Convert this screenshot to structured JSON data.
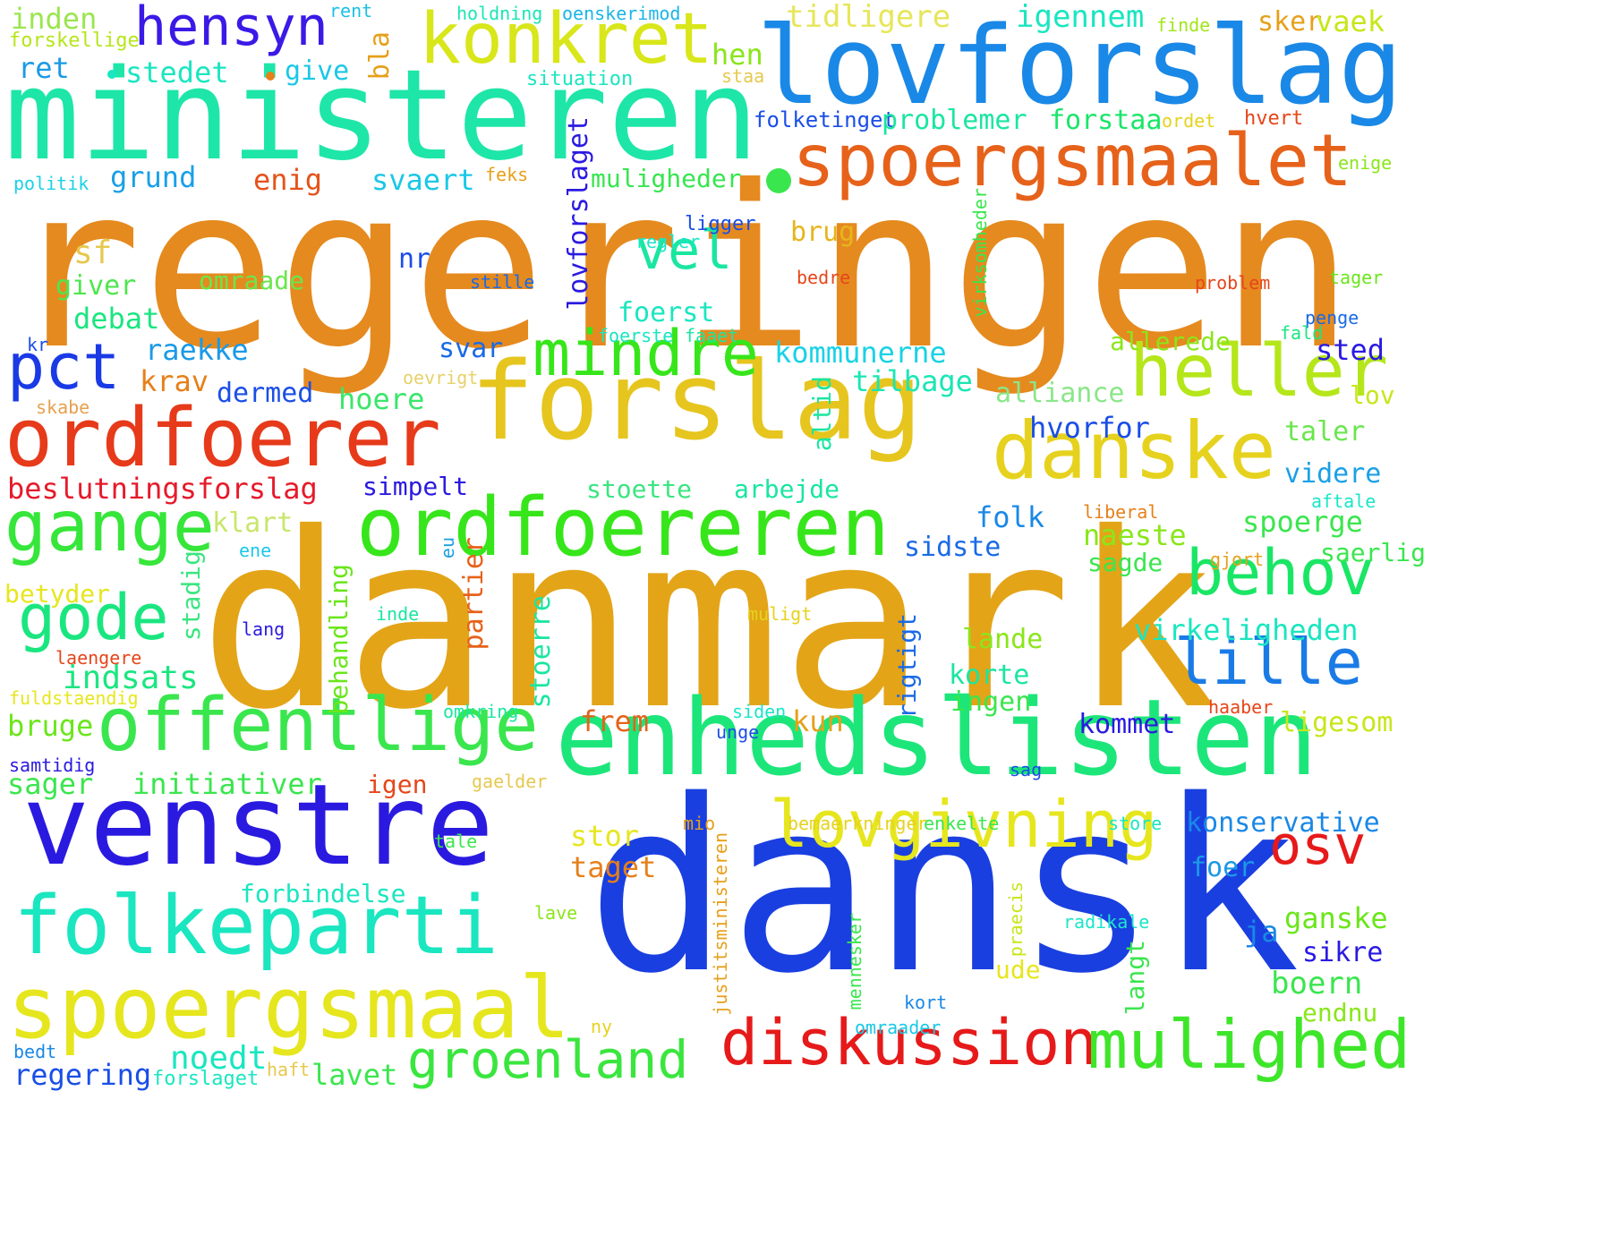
{
  "words": [
    {
      "text": "regeringen",
      "color": "#E58A1F"
    },
    {
      "text": "danmark",
      "color": "#E3A418"
    },
    {
      "text": "dansk",
      "color": "#1A3FE0"
    },
    {
      "text": "ministeren",
      "color": "#1EE6A8"
    },
    {
      "text": "lovforslag",
      "color": "#1A88E6"
    },
    {
      "text": "forslag",
      "color": "#E6C51E"
    },
    {
      "text": "enhedslisten",
      "color": "#1CE67A"
    },
    {
      "text": "venstre",
      "color": "#2A1AE0"
    },
    {
      "text": "ordfoerer",
      "color": "#E63A1A"
    },
    {
      "text": "ordfoereren",
      "color": "#36E61A"
    },
    {
      "text": "spoergsmaalet",
      "color": "#E6621A"
    },
    {
      "text": "danske",
      "color": "#E6D21E"
    },
    {
      "text": "folkeparti",
      "color": "#1AE6C0"
    },
    {
      "text": "spoergsmaal",
      "color": "#E6E61E"
    },
    {
      "text": "offentlige",
      "color": "#3AE64E"
    },
    {
      "text": "konkret",
      "color": "#D8E61A"
    },
    {
      "text": "heller",
      "color": "#B5E61A"
    },
    {
      "text": "mindre",
      "color": "#36E61A"
    },
    {
      "text": "gange",
      "color": "#36E63A"
    },
    {
      "text": "lovgivning",
      "color": "#E6E61E"
    },
    {
      "text": "diskussion",
      "color": "#E61A1A"
    },
    {
      "text": "mulighed",
      "color": "#3EE62A"
    },
    {
      "text": "behov",
      "color": "#1AE666"
    },
    {
      "text": "lille",
      "color": "#1A7BE6"
    },
    {
      "text": "gode",
      "color": "#1AE680"
    },
    {
      "text": "pct",
      "color": "#1A3AE6"
    },
    {
      "text": "hensyn",
      "color": "#3A1AE6"
    },
    {
      "text": "osv",
      "color": "#E61A1A"
    },
    {
      "text": "groenland",
      "color": "#3AE63E"
    },
    {
      "text": "vel",
      "color": "#1AE6A0"
    },
    {
      "text": "beslutningsforslag",
      "color": "#E61A2A"
    },
    {
      "text": "indsats",
      "color": "#1AE680"
    },
    {
      "text": "tidligere",
      "color": "#E6E65A"
    },
    {
      "text": "igennem",
      "color": "#1AE6C0"
    },
    {
      "text": "sker",
      "color": "#E6A01A"
    },
    {
      "text": "vaek",
      "color": "#C8E61A"
    },
    {
      "text": "inden",
      "color": "#9AE64E"
    },
    {
      "text": "forskellige",
      "color": "#B5E61A"
    },
    {
      "text": "ret",
      "color": "#1A9AE6"
    },
    {
      "text": "stedet",
      "color": "#1AE6C0"
    },
    {
      "text": "give",
      "color": "#1AC8E6"
    },
    {
      "text": "rent",
      "color": "#1AC0E6"
    },
    {
      "text": "holdning",
      "color": "#1AE6B5"
    },
    {
      "text": "oenskerimod",
      "color": "#1AB5E6"
    },
    {
      "text": "finde",
      "color": "#A0E61A"
    },
    {
      "text": "hen",
      "color": "#8AE61A"
    },
    {
      "text": "bla",
      "color": "#E6A01A"
    },
    {
      "text": "situation",
      "color": "#1AE6C0"
    },
    {
      "text": "staa",
      "color": "#E6C84E"
    },
    {
      "text": "folketinget",
      "color": "#1A4EE6"
    },
    {
      "text": "problemer",
      "color": "#1AE6A0"
    },
    {
      "text": "forstaa",
      "color": "#1AE66A"
    },
    {
      "text": "ordet",
      "color": "#E6D21E"
    },
    {
      "text": "hvert",
      "color": "#E6461A"
    },
    {
      "text": "politik",
      "color": "#1AD2E6"
    },
    {
      "text": "grund",
      "color": "#1AA0E6"
    },
    {
      "text": "enig",
      "color": "#E6521A"
    },
    {
      "text": "svaert",
      "color": "#1AC8E6"
    },
    {
      "text": "feks",
      "color": "#E6A01A"
    },
    {
      "text": "muligheder",
      "color": "#36E64E"
    },
    {
      "text": "enige",
      "color": "#8AE61A"
    },
    {
      "text": "lovforslaget",
      "color": "#2A1AE0"
    },
    {
      "text": "ligger",
      "color": "#1A4EE6"
    },
    {
      "text": "virksomheder",
      "color": "#3AE64E"
    },
    {
      "text": "regler",
      "color": "#1AE6C8"
    },
    {
      "text": "brug",
      "color": "#E6B51E"
    },
    {
      "text": "sf",
      "color": "#E6C84E"
    },
    {
      "text": "nr",
      "color": "#1A4EE6"
    },
    {
      "text": "stille",
      "color": "#1A6AE6"
    },
    {
      "text": "bedre",
      "color": "#E6461A"
    },
    {
      "text": "problem",
      "color": "#E6461A"
    },
    {
      "text": "tager",
      "color": "#6AE61A"
    },
    {
      "text": "giver",
      "color": "#4EE64E"
    },
    {
      "text": "omraade",
      "color": "#6AE64E"
    },
    {
      "text": "debat",
      "color": "#1AE680"
    },
    {
      "text": "foerst",
      "color": "#1AE6C0"
    },
    {
      "text": "penge",
      "color": "#1A6AE6"
    },
    {
      "text": "kr",
      "color": "#1A4EE6"
    },
    {
      "text": "raekke",
      "color": "#1A9AE6"
    },
    {
      "text": "svar",
      "color": "#1A6AE6"
    },
    {
      "text": "foerste",
      "color": "#1AE6C0"
    },
    {
      "text": "faaet",
      "color": "#1AE6A0"
    },
    {
      "text": "fald",
      "color": "#1AE680"
    },
    {
      "text": "kommunerne",
      "color": "#1AD2E6"
    },
    {
      "text": "allerede",
      "color": "#8AE61A"
    },
    {
      "text": "sted",
      "color": "#2A1AE0"
    },
    {
      "text": "krav",
      "color": "#E6801A"
    },
    {
      "text": "dermed",
      "color": "#1A4EE6"
    },
    {
      "text": "hoere",
      "color": "#3AE66A"
    },
    {
      "text": "oevrigt",
      "color": "#E6D26A"
    },
    {
      "text": "tilbage",
      "color": "#1AE6B5"
    },
    {
      "text": "alliance",
      "color": "#8AE68A"
    },
    {
      "text": "lov",
      "color": "#C8E61A"
    },
    {
      "text": "skabe",
      "color": "#E6A04E"
    },
    {
      "text": "altid",
      "color": "#1AE6A0"
    },
    {
      "text": "hvorfor",
      "color": "#1A4EE6"
    },
    {
      "text": "taler",
      "color": "#6AE64E"
    },
    {
      "text": "simpelt",
      "color": "#2A1AE0"
    },
    {
      "text": "stoette",
      "color": "#3AE680"
    },
    {
      "text": "arbejde",
      "color": "#1AE6A0"
    },
    {
      "text": "videre",
      "color": "#1AA0E6"
    },
    {
      "text": "aftale",
      "color": "#1AE6C8"
    },
    {
      "text": "klart",
      "color": "#C8E66A"
    },
    {
      "text": "folk",
      "color": "#1A88E6"
    },
    {
      "text": "liberal",
      "color": "#E6801A"
    },
    {
      "text": "spoerge",
      "color": "#3AE64E"
    },
    {
      "text": "naeste",
      "color": "#8AE61A"
    },
    {
      "text": "sidste",
      "color": "#1A6AE6"
    },
    {
      "text": "ene",
      "color": "#1AC8E6"
    },
    {
      "text": "eu",
      "color": "#1AA0E6"
    },
    {
      "text": "saerlig",
      "color": "#3AE64E"
    },
    {
      "text": "gjort",
      "color": "#E6A01A"
    },
    {
      "text": "sagde",
      "color": "#3AE64E"
    },
    {
      "text": "betyder",
      "color": "#E6E61E"
    },
    {
      "text": "partier",
      "color": "#E6621A"
    },
    {
      "text": "stadig",
      "color": "#3AE680"
    },
    {
      "text": "inde",
      "color": "#1AE6A0"
    },
    {
      "text": "muligt",
      "color": "#E6D21E"
    },
    {
      "text": "lang",
      "color": "#2A1AE0"
    },
    {
      "text": "virkeligheden",
      "color": "#1AE6C0"
    },
    {
      "text": "behandling",
      "color": "#6AE61A"
    },
    {
      "text": "rigtigt",
      "color": "#1A6AE6"
    },
    {
      "text": "lande",
      "color": "#8AE61A"
    },
    {
      "text": "laengere",
      "color": "#E6461A"
    },
    {
      "text": "stoerre",
      "color": "#1AE6A0"
    },
    {
      "text": "korte",
      "color": "#1AE6A0"
    },
    {
      "text": "fuldstaendig",
      "color": "#E6E61E"
    },
    {
      "text": "omkring",
      "color": "#1AE6A0"
    },
    {
      "text": "siden",
      "color": "#1AE6C8"
    },
    {
      "text": "ingen",
      "color": "#3AE64E"
    },
    {
      "text": "haaber",
      "color": "#E6461A"
    },
    {
      "text": "bruge",
      "color": "#6AE61A"
    },
    {
      "text": "frem",
      "color": "#E6621A"
    },
    {
      "text": "kun",
      "color": "#E6A01A"
    },
    {
      "text": "kommet",
      "color": "#2A1AE0"
    },
    {
      "text": "ligesom",
      "color": "#C8E61A"
    },
    {
      "text": "unge",
      "color": "#1A4EE6"
    },
    {
      "text": "samtidig",
      "color": "#2A1AE0"
    },
    {
      "text": "sager",
      "color": "#3AE64E"
    },
    {
      "text": "initiativer",
      "color": "#3AE64E"
    },
    {
      "text": "igen",
      "color": "#E6461A"
    },
    {
      "text": "gaelder",
      "color": "#E6C84E"
    },
    {
      "text": "sag",
      "color": "#1A4EE6"
    },
    {
      "text": "mio",
      "color": "#E6A01A"
    },
    {
      "text": "bemaerkninger",
      "color": "#E6D21E"
    },
    {
      "text": "enkelte",
      "color": "#3AE64E"
    },
    {
      "text": "store",
      "color": "#1AE6C0"
    },
    {
      "text": "konservative",
      "color": "#1A88E6"
    },
    {
      "text": "tale",
      "color": "#3AE64E"
    },
    {
      "text": "stor",
      "color": "#E6E61E"
    },
    {
      "text": "taget",
      "color": "#E6801A"
    },
    {
      "text": "justitsministeren",
      "color": "#E6A01A"
    },
    {
      "text": "foer",
      "color": "#1A9AE6"
    },
    {
      "text": "forbindelse",
      "color": "#1AE6C0"
    },
    {
      "text": "lave",
      "color": "#8AE61A"
    },
    {
      "text": "mennesker",
      "color": "#3AE64E"
    },
    {
      "text": "praecis",
      "color": "#C8E61A"
    },
    {
      "text": "radikale",
      "color": "#1AE6C8"
    },
    {
      "text": "ganske",
      "color": "#6AE61A"
    },
    {
      "text": "ja",
      "color": "#1A88E6"
    },
    {
      "text": "sikre",
      "color": "#2A1AE0"
    },
    {
      "text": "ude",
      "color": "#E6E61E"
    },
    {
      "text": "langt",
      "color": "#3AE64E"
    },
    {
      "text": "boern",
      "color": "#3AE64E"
    },
    {
      "text": "kort",
      "color": "#1A88E6"
    },
    {
      "text": "endnu",
      "color": "#8AE61A"
    },
    {
      "text": "omraader",
      "color": "#1AC8E6"
    },
    {
      "text": "ny",
      "color": "#E6D21E"
    },
    {
      "text": "noedt",
      "color": "#1AE6C0"
    },
    {
      "text": "bedt",
      "color": "#1A88E6"
    },
    {
      "text": "regering",
      "color": "#1A4EE6"
    },
    {
      "text": "forslaget",
      "color": "#1AE6C0"
    },
    {
      "text": "haft",
      "color": "#E6C84E"
    },
    {
      "text": "lavet",
      "color": "#3AE64E"
    },
    {
      "text": "dot",
      "color": "#1AE6C0"
    },
    {
      "text": "dot",
      "color": "#E6801A"
    },
    {
      "text": "dot",
      "color": "#3AE64E"
    }
  ]
}
